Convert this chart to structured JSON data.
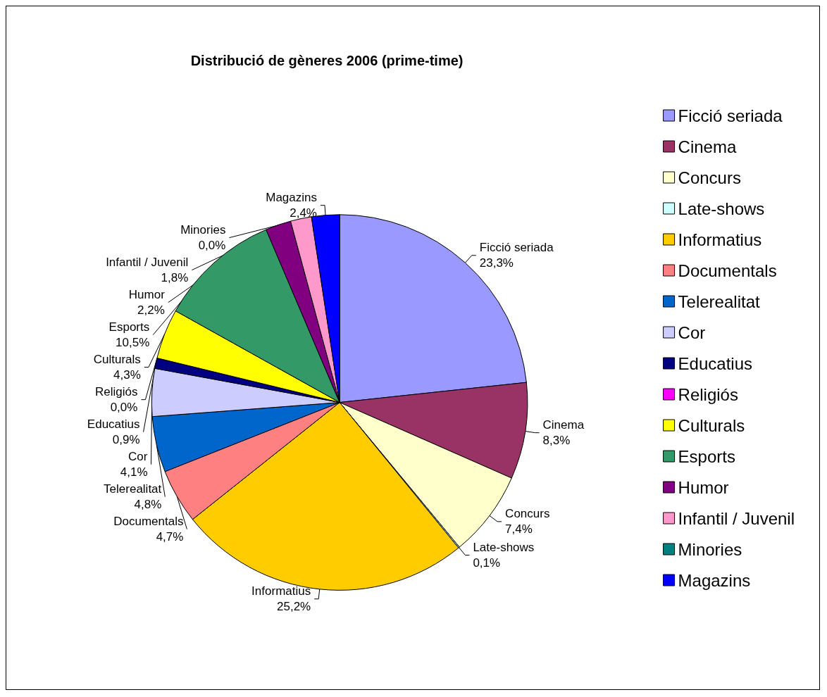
{
  "chart_data": {
    "type": "pie",
    "title": "Distribució de gèneres 2006 (prime-time)",
    "categories": [
      "Ficció seriada",
      "Cinema",
      "Concurs",
      "Late-shows",
      "Informatius",
      "Documentals",
      "Telerealitat",
      "Cor",
      "Educatius",
      "Religiós",
      "Culturals",
      "Esports",
      "Humor",
      "Infantil / Juvenil",
      "Minories",
      "Magazins"
    ],
    "values": [
      23.3,
      8.3,
      7.4,
      0.1,
      25.2,
      4.7,
      4.8,
      4.1,
      0.9,
      0.0,
      4.3,
      10.5,
      2.2,
      1.8,
      0.0,
      2.4
    ],
    "value_labels": [
      "23,3%",
      "8,3%",
      "7,4%",
      "0,1%",
      "25,2%",
      "4,7%",
      "4,8%",
      "4,1%",
      "0,9%",
      "0,0%",
      "4,3%",
      "10,5%",
      "2,2%",
      "1,8%",
      "0,0%",
      "2,4%"
    ],
    "colors": [
      "#9999ff",
      "#993366",
      "#ffffcc",
      "#ccffff",
      "#ffcc00",
      "#ff8080",
      "#0066cc",
      "#ccccff",
      "#000080",
      "#ff00ff",
      "#ffff00",
      "#339966",
      "#800080",
      "#ff99cc",
      "#008080",
      "#0000ff"
    ],
    "legend": "right"
  }
}
